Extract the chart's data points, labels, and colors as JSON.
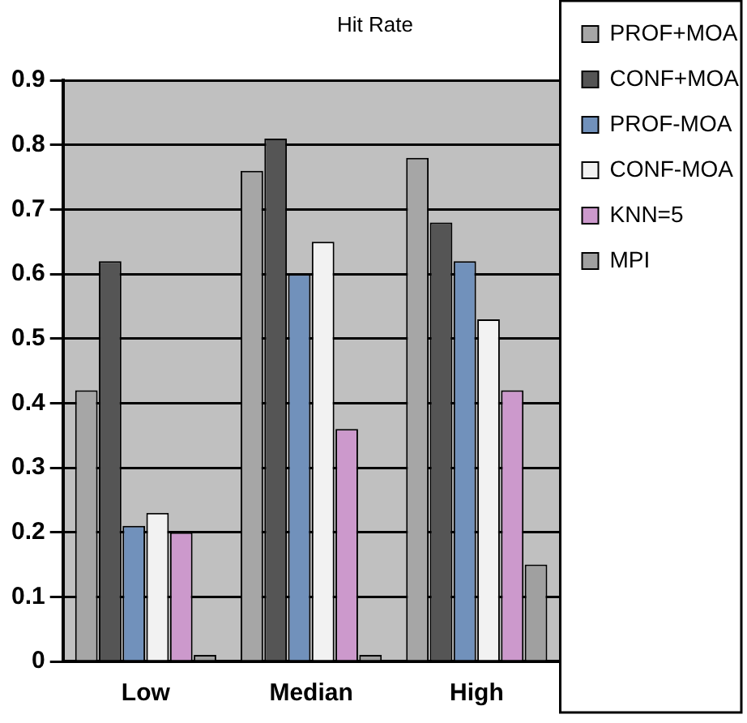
{
  "chart_data": {
    "type": "bar",
    "title": "Hit Rate",
    "categories": [
      "Low",
      "Median",
      "High"
    ],
    "series": [
      {
        "name": "PROF+MOA",
        "color": "#a6a6a6",
        "values": [
          0.42,
          0.76,
          0.78
        ]
      },
      {
        "name": "CONF+MOA",
        "color": "#555555",
        "values": [
          0.62,
          0.81,
          0.68
        ]
      },
      {
        "name": "PROF-MOA",
        "color": "#7191bb",
        "values": [
          0.21,
          0.6,
          0.62
        ]
      },
      {
        "name": "CONF-MOA",
        "color": "#f2f2f2",
        "values": [
          0.23,
          0.65,
          0.53
        ]
      },
      {
        "name": "KNN=5",
        "color": "#cc99cc",
        "values": [
          0.2,
          0.36,
          0.42
        ]
      },
      {
        "name": "MPI",
        "color": "#a0a0a0",
        "values": [
          0.01,
          0.01,
          0.15
        ]
      }
    ],
    "ylim": [
      0,
      0.9
    ],
    "yticks": [
      0,
      0.1,
      0.2,
      0.3,
      0.4,
      0.5,
      0.6,
      0.7,
      0.8,
      0.9
    ],
    "grid": "y",
    "legend": "right"
  }
}
